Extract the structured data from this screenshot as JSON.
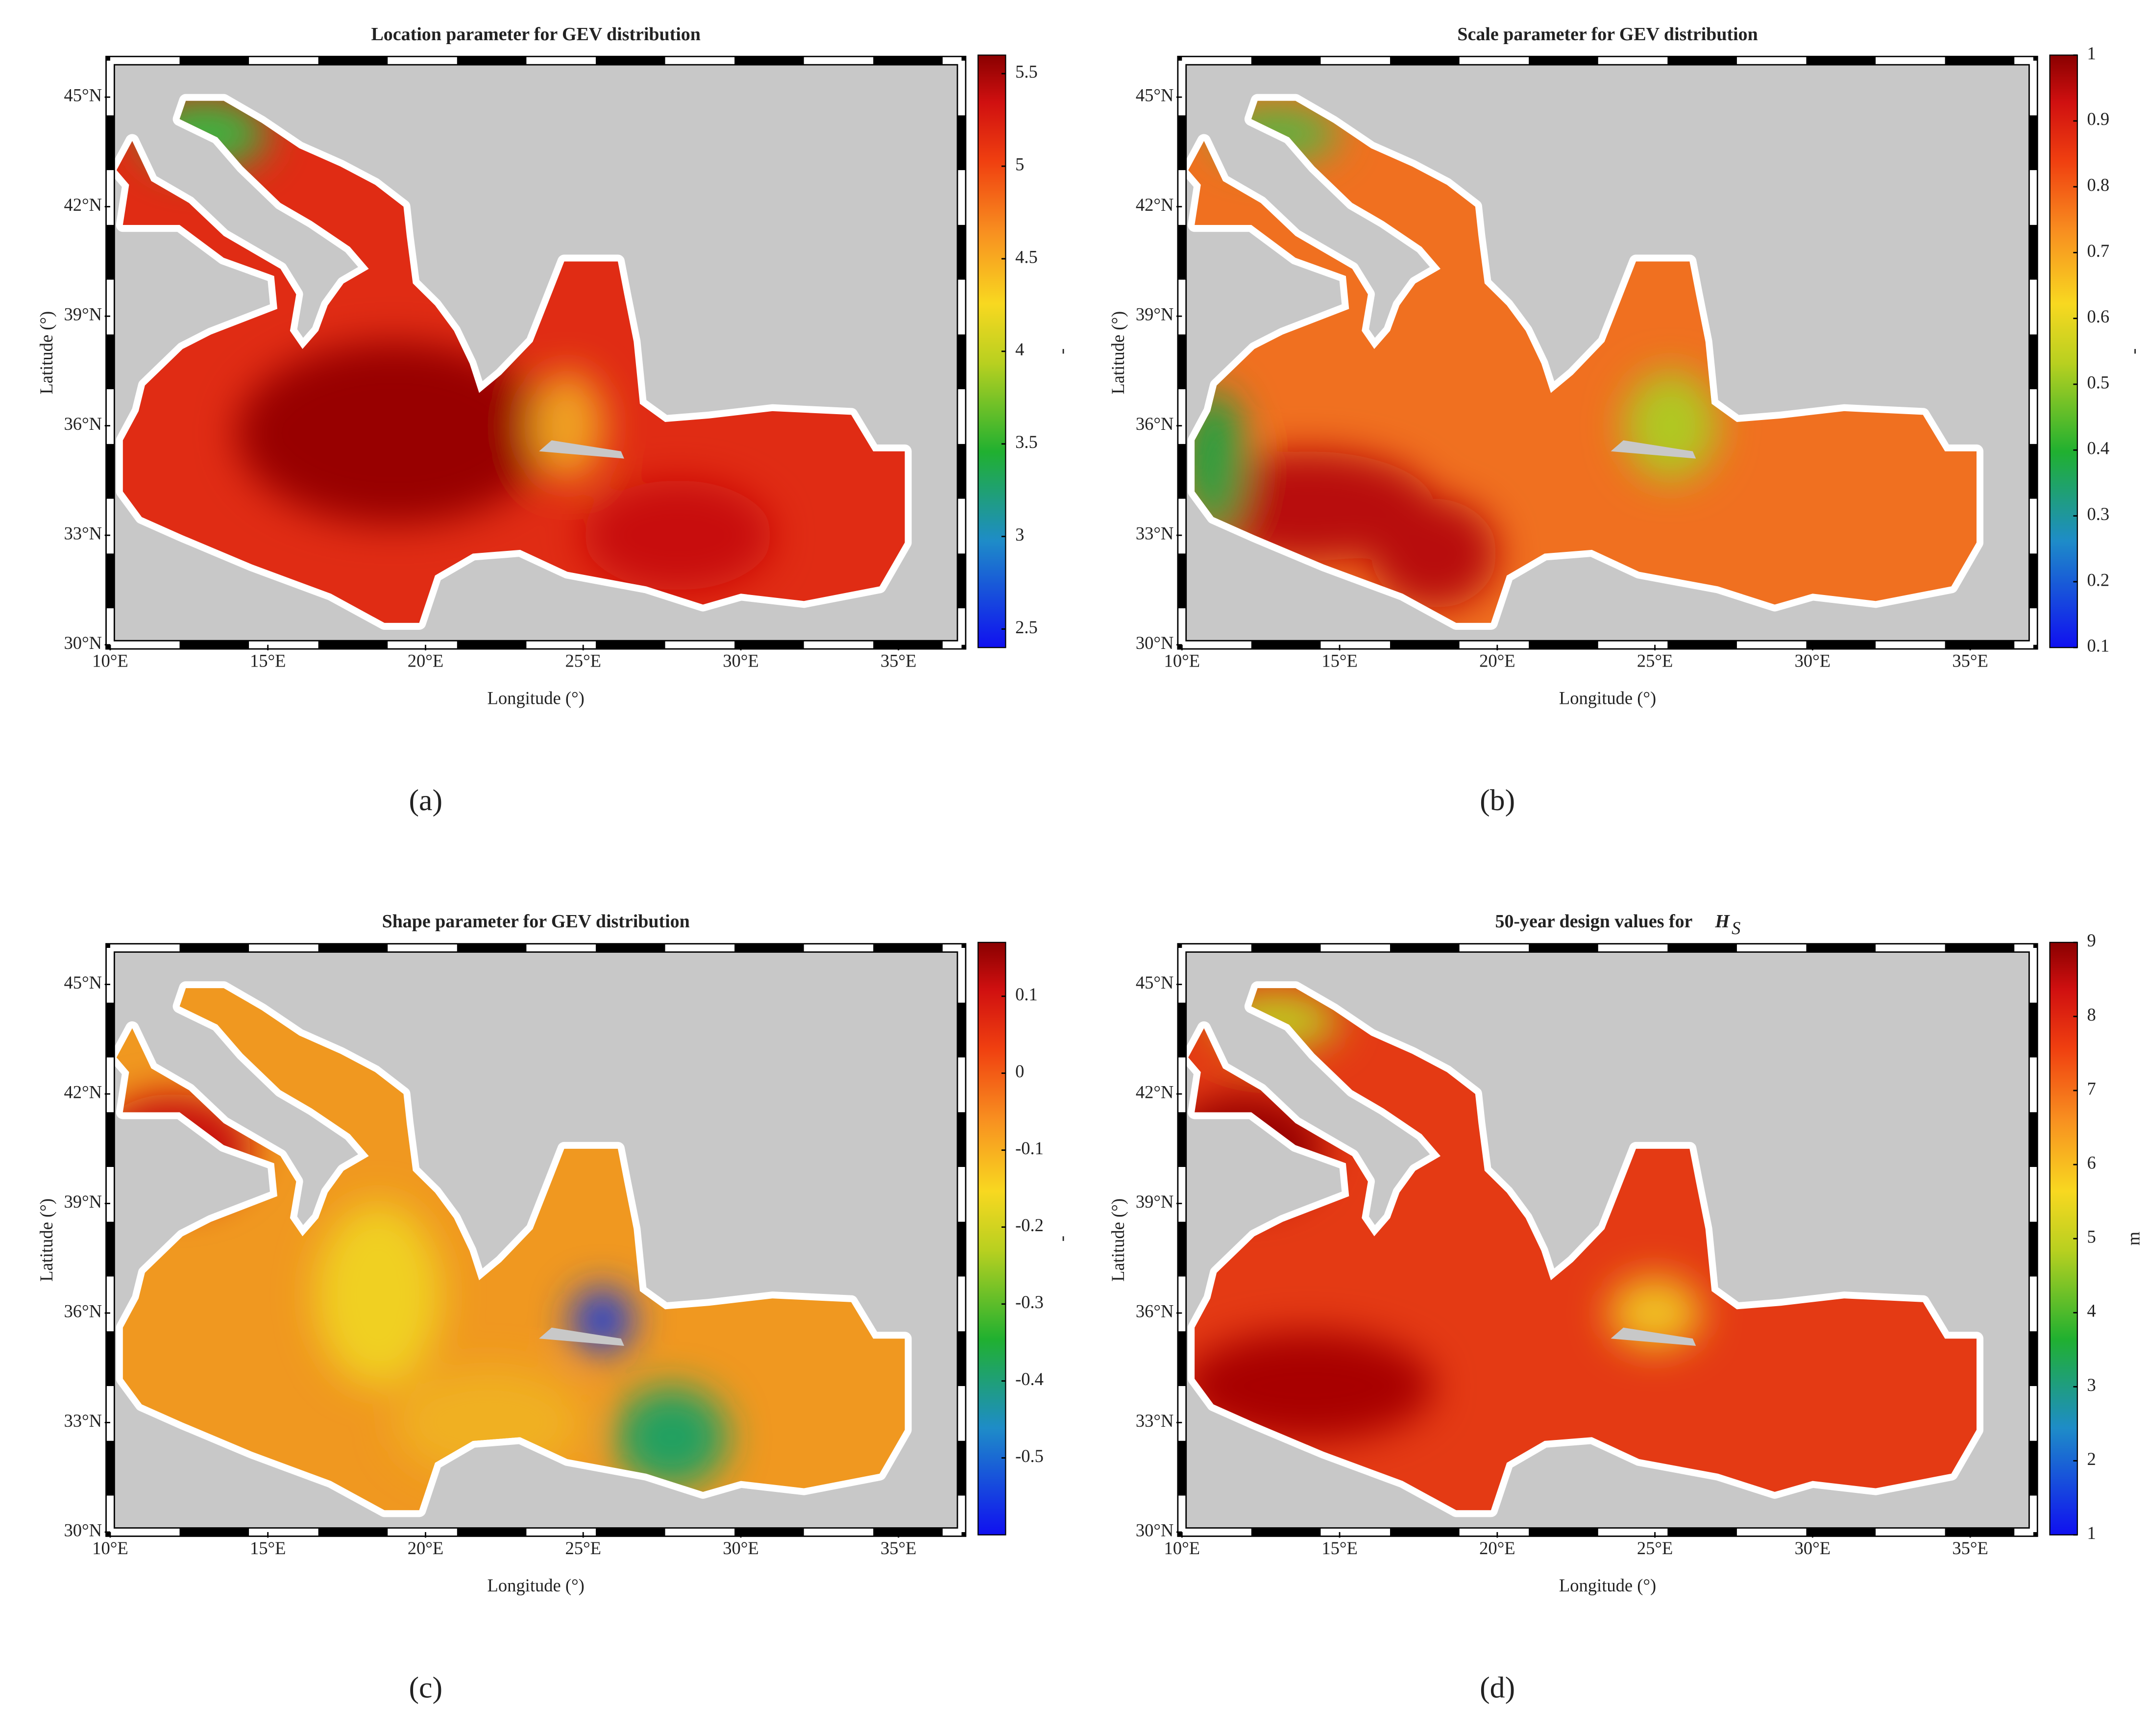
{
  "chart_data": [
    {
      "type": "map",
      "title": "Location parameter for GEV distribution",
      "panel_label": "(a)",
      "xlabel": "Longitude (°)",
      "ylabel": "Latitude (°)",
      "xlim": [
        10,
        37
      ],
      "ylim": [
        30,
        46
      ],
      "xticks": [
        {
          "value": 10,
          "label": "10°E"
        },
        {
          "value": 15,
          "label": "15°E"
        },
        {
          "value": 20,
          "label": "20°E"
        },
        {
          "value": 25,
          "label": "25°E"
        },
        {
          "value": 30,
          "label": "30°E"
        },
        {
          "value": 35,
          "label": "35°E"
        }
      ],
      "yticks": [
        {
          "value": 30,
          "label": "30°N"
        },
        {
          "value": 33,
          "label": "33°N"
        },
        {
          "value": 36,
          "label": "36°N"
        },
        {
          "value": 39,
          "label": "39°N"
        },
        {
          "value": 42,
          "label": "42°N"
        },
        {
          "value": 45,
          "label": "45°N"
        }
      ],
      "colorbar": {
        "lim": [
          2.4,
          5.6
        ],
        "ticks": [
          2.5,
          3,
          3.5,
          4,
          4.5,
          5,
          5.5
        ],
        "label": "-"
      }
    },
    {
      "type": "map",
      "title": "Scale parameter for GEV distribution",
      "panel_label": "(b)",
      "xlabel": "Longitude (°)",
      "ylabel": "Latitude (°)",
      "xlim": [
        10,
        37
      ],
      "ylim": [
        30,
        46
      ],
      "xticks": [
        {
          "value": 10,
          "label": "10°E"
        },
        {
          "value": 15,
          "label": "15°E"
        },
        {
          "value": 20,
          "label": "20°E"
        },
        {
          "value": 25,
          "label": "25°E"
        },
        {
          "value": 30,
          "label": "30°E"
        },
        {
          "value": 35,
          "label": "35°E"
        }
      ],
      "yticks": [
        {
          "value": 30,
          "label": "30°N"
        },
        {
          "value": 33,
          "label": "33°N"
        },
        {
          "value": 36,
          "label": "36°N"
        },
        {
          "value": 39,
          "label": "39°N"
        },
        {
          "value": 42,
          "label": "42°N"
        },
        {
          "value": 45,
          "label": "45°N"
        }
      ],
      "colorbar": {
        "lim": [
          0.1,
          1.0
        ],
        "ticks": [
          0.1,
          0.2,
          0.3,
          0.4,
          0.5,
          0.6,
          0.7,
          0.8,
          0.9,
          1
        ],
        "label": "-"
      }
    },
    {
      "type": "map",
      "title": "Shape parameter for GEV distribution",
      "panel_label": "(c)",
      "xlabel": "Longitude (°)",
      "ylabel": "Latitude (°)",
      "xlim": [
        10,
        37
      ],
      "ylim": [
        30,
        46
      ],
      "xticks": [
        {
          "value": 10,
          "label": "10°E"
        },
        {
          "value": 15,
          "label": "15°E"
        },
        {
          "value": 20,
          "label": "20°E"
        },
        {
          "value": 25,
          "label": "25°E"
        },
        {
          "value": 30,
          "label": "30°E"
        },
        {
          "value": 35,
          "label": "35°E"
        }
      ],
      "yticks": [
        {
          "value": 30,
          "label": "30°N"
        },
        {
          "value": 33,
          "label": "33°N"
        },
        {
          "value": 36,
          "label": "36°N"
        },
        {
          "value": 39,
          "label": "39°N"
        },
        {
          "value": 42,
          "label": "42°N"
        },
        {
          "value": 45,
          "label": "45°N"
        }
      ],
      "colorbar": {
        "lim": [
          -0.6,
          0.17
        ],
        "ticks": [
          -0.5,
          -0.4,
          -0.3,
          -0.2,
          -0.1,
          0,
          0.1
        ],
        "label": "-"
      }
    },
    {
      "type": "map",
      "title": "50-year design values for",
      "title_symbol": "H",
      "title_subscript": "S",
      "panel_label": "(d)",
      "xlabel": "Longitude (°)",
      "ylabel": "Latitude (°)",
      "xlim": [
        10,
        37
      ],
      "ylim": [
        30,
        46
      ],
      "xticks": [
        {
          "value": 10,
          "label": "10°E"
        },
        {
          "value": 15,
          "label": "15°E"
        },
        {
          "value": 20,
          "label": "20°E"
        },
        {
          "value": 25,
          "label": "25°E"
        },
        {
          "value": 30,
          "label": "30°E"
        },
        {
          "value": 35,
          "label": "35°E"
        }
      ],
      "yticks": [
        {
          "value": 30,
          "label": "30°N"
        },
        {
          "value": 33,
          "label": "33°N"
        },
        {
          "value": 36,
          "label": "36°N"
        },
        {
          "value": 39,
          "label": "39°N"
        },
        {
          "value": 42,
          "label": "42°N"
        },
        {
          "value": 45,
          "label": "45°N"
        }
      ],
      "colorbar": {
        "lim": [
          1,
          9
        ],
        "ticks": [
          1,
          2,
          3,
          4,
          5,
          6,
          7,
          8,
          9
        ],
        "label": "m"
      }
    }
  ]
}
